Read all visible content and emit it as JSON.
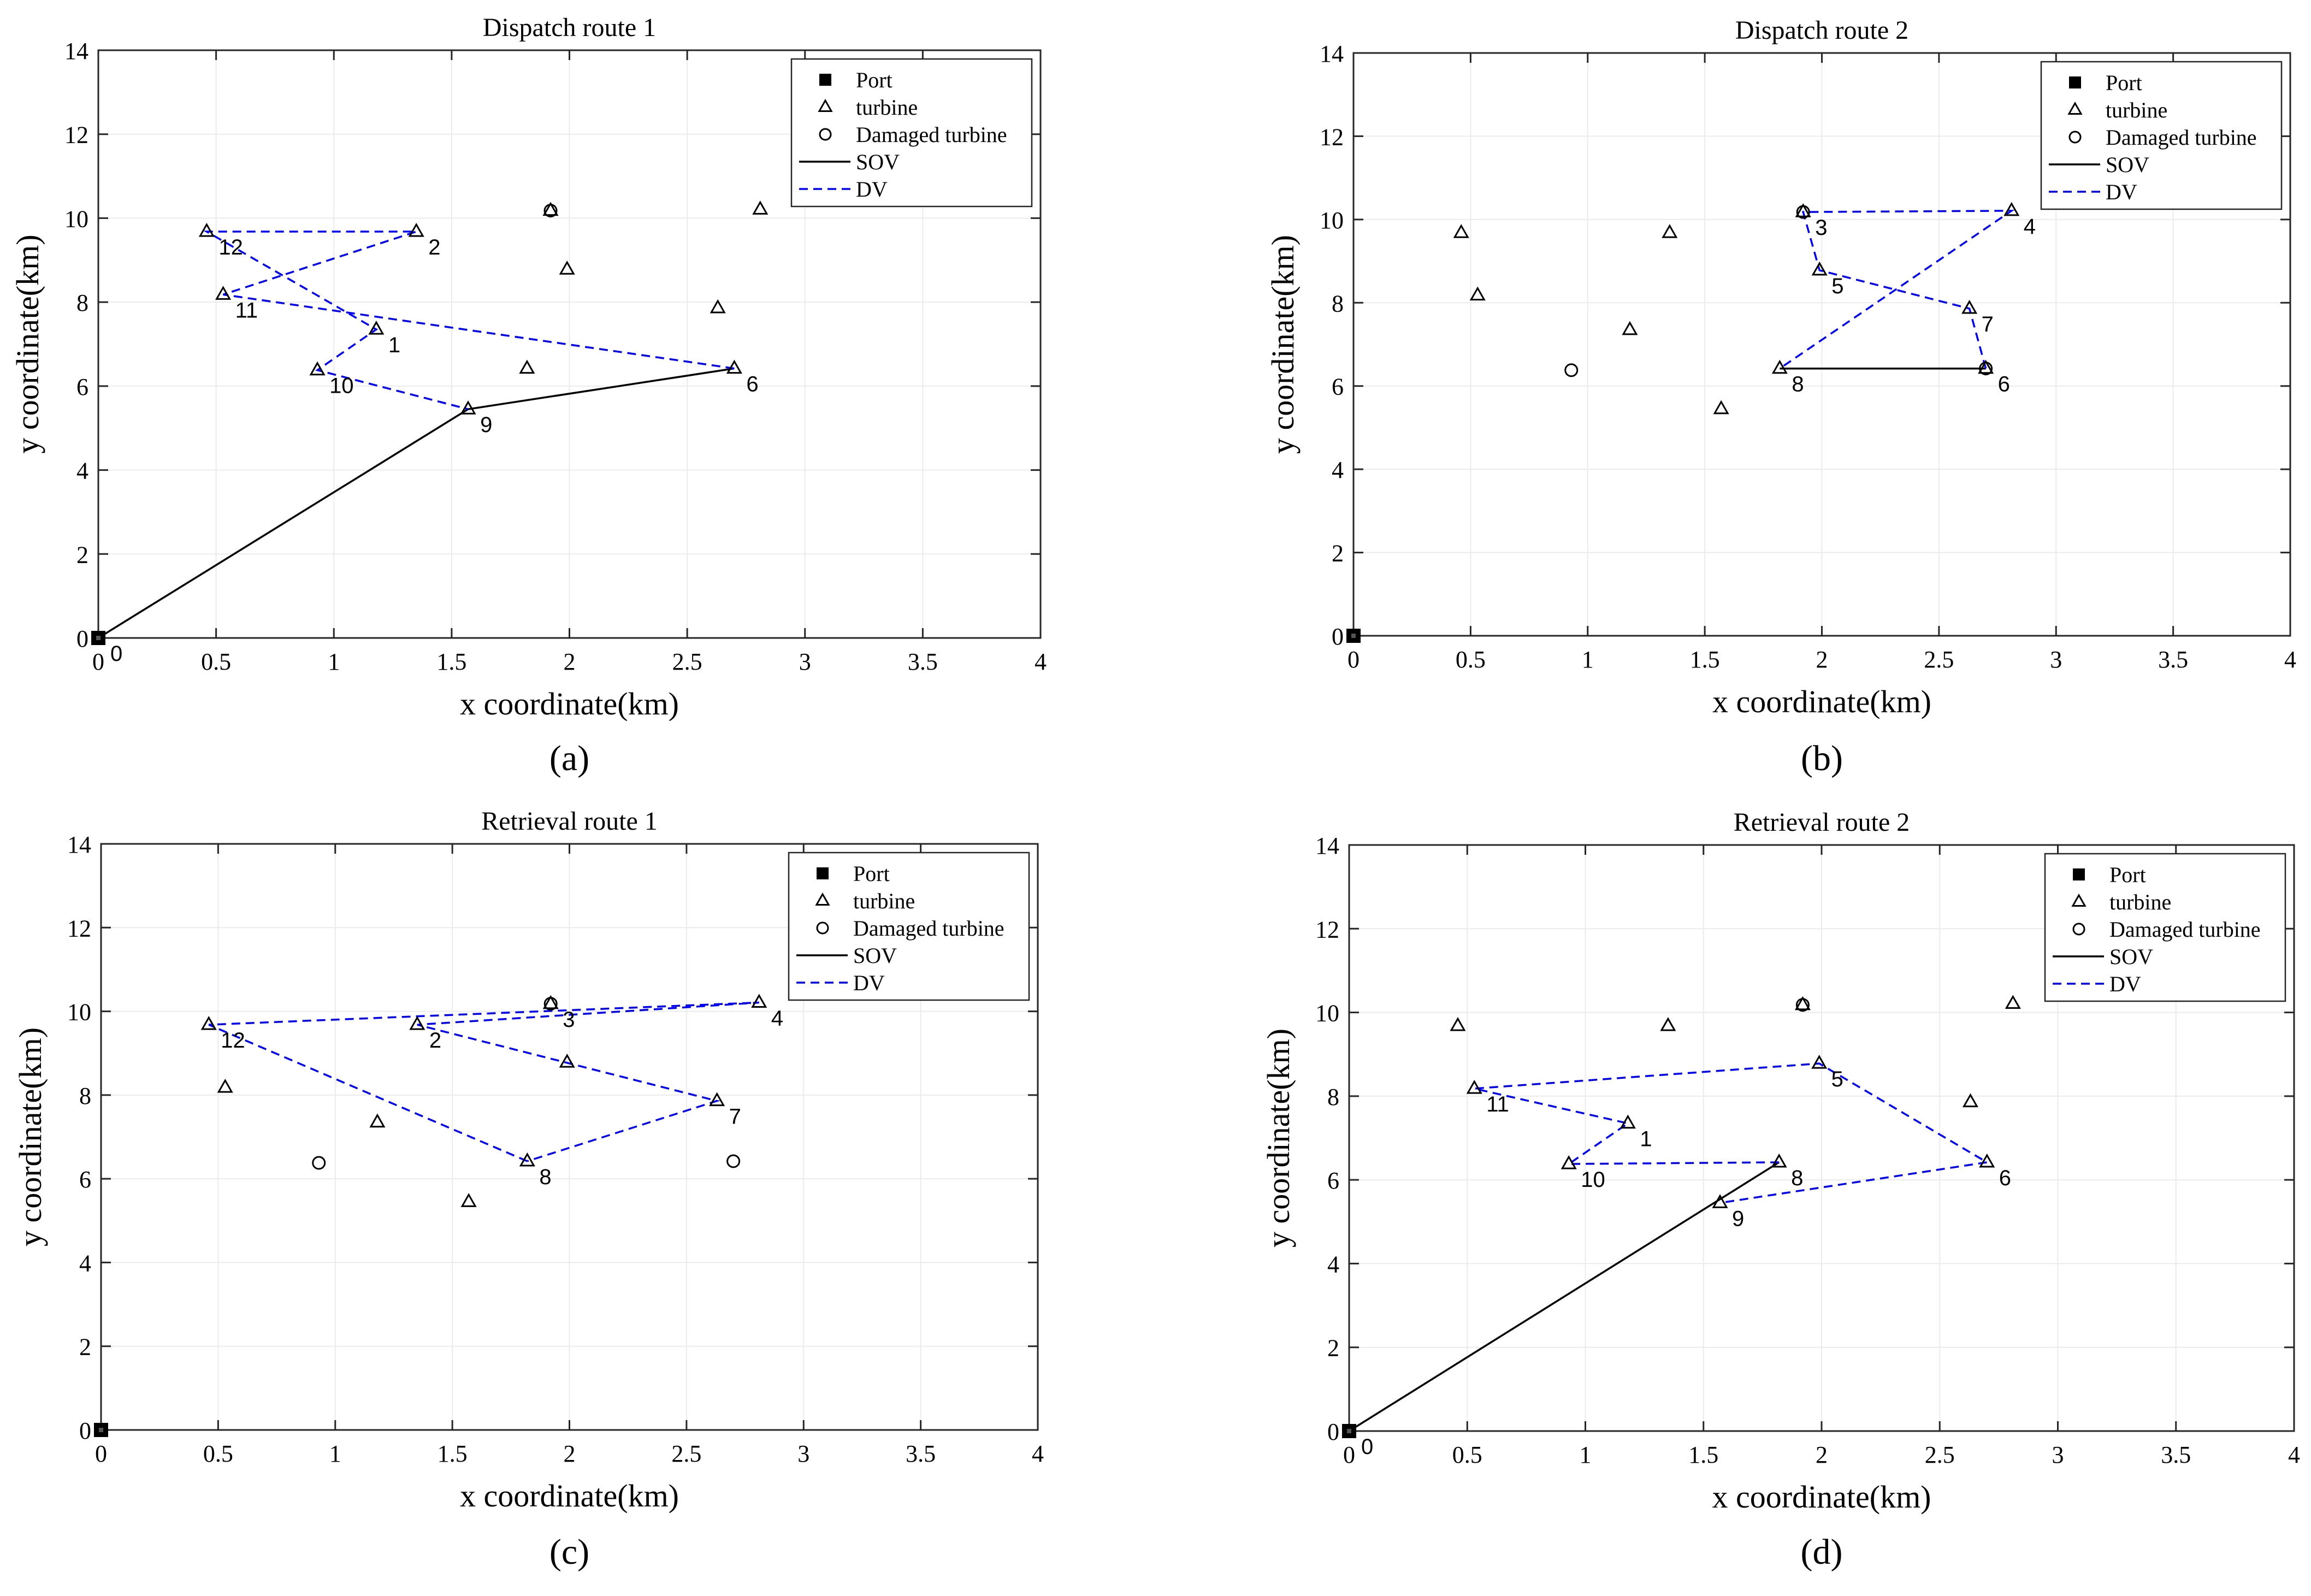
{
  "colors": {
    "sov": "#000000",
    "dv": "#0000ff",
    "grid": "#ebebeb",
    "axis": "#262626",
    "label": "#000000"
  },
  "chart_data": [
    {
      "type": "scatter",
      "caption": "(a)",
      "title": "Dispatch route 1",
      "xlabel": "x coordinate(km)",
      "ylabel": "y coordinate(km)",
      "xlim": [
        0,
        4
      ],
      "ylim": [
        0,
        14
      ],
      "xticks": [
        "0",
        "0.5",
        "1",
        "1.5",
        "2",
        "2.5",
        "3",
        "3.5",
        "4"
      ],
      "yticks": [
        "0",
        "2",
        "4",
        "6",
        "8",
        "10",
        "12",
        "14"
      ],
      "grid": true,
      "legend_position": "top-right",
      "legend": [
        "Port",
        "turbine",
        "Damaged turbine",
        "SOV",
        "DV"
      ],
      "port": [
        0,
        0
      ],
      "turbines": [
        [
          0.46,
          9.68
        ],
        [
          1.35,
          9.68
        ],
        [
          1.92,
          10.18
        ],
        [
          2.81,
          10.21
        ],
        [
          0.53,
          8.18
        ],
        [
          1.99,
          8.78
        ],
        [
          2.63,
          7.86
        ],
        [
          1.18,
          7.35
        ],
        [
          0.93,
          6.38
        ],
        [
          1.82,
          6.42
        ],
        [
          2.7,
          6.42
        ],
        [
          1.57,
          5.45
        ]
      ],
      "damaged": [
        [
          1.92,
          10.18
        ]
      ],
      "sov_path": [
        [
          0,
          0
        ],
        [
          1.57,
          5.45
        ],
        [
          2.7,
          6.42
        ]
      ],
      "dv_path": [
        [
          2.7,
          6.42
        ],
        [
          0.53,
          8.18
        ],
        [
          1.35,
          9.68
        ],
        [
          0.46,
          9.68
        ],
        [
          1.18,
          7.35
        ],
        [
          0.93,
          6.38
        ],
        [
          1.57,
          5.45
        ]
      ],
      "node_labels": [
        {
          "text": "0",
          "x": 0,
          "y": 0
        },
        {
          "text": "12",
          "x": 0.46,
          "y": 9.68
        },
        {
          "text": "2",
          "x": 1.35,
          "y": 9.68
        },
        {
          "text": "11",
          "x": 0.53,
          "y": 8.18
        },
        {
          "text": "1",
          "x": 1.18,
          "y": 7.35
        },
        {
          "text": "10",
          "x": 0.93,
          "y": 6.38
        },
        {
          "text": "9",
          "x": 1.57,
          "y": 5.45
        },
        {
          "text": "6",
          "x": 2.7,
          "y": 6.42
        }
      ]
    },
    {
      "type": "scatter",
      "caption": "(b)",
      "title": "Dispatch route 2",
      "xlabel": "x coordinate(km)",
      "ylabel": "y coordinate(km)",
      "xlim": [
        0,
        4
      ],
      "ylim": [
        0,
        14
      ],
      "xticks": [
        "0",
        "0.5",
        "1",
        "1.5",
        "2",
        "2.5",
        "3",
        "3.5",
        "4"
      ],
      "yticks": [
        "0",
        "2",
        "4",
        "6",
        "8",
        "10",
        "12",
        "14"
      ],
      "grid": true,
      "legend_position": "top-right",
      "legend": [
        "Port",
        "turbine",
        "Damaged turbine",
        "SOV",
        "DV"
      ],
      "port": [
        0,
        0
      ],
      "turbines": [
        [
          0.46,
          9.68
        ],
        [
          1.35,
          9.68
        ],
        [
          1.92,
          10.18
        ],
        [
          2.81,
          10.21
        ],
        [
          0.53,
          8.18
        ],
        [
          1.99,
          8.78
        ],
        [
          2.63,
          7.86
        ],
        [
          1.18,
          7.35
        ],
        [
          1.82,
          6.42
        ],
        [
          2.7,
          6.42
        ],
        [
          1.57,
          5.45
        ]
      ],
      "damaged": [
        [
          0.93,
          6.38
        ],
        [
          1.92,
          10.18
        ],
        [
          2.7,
          6.42
        ]
      ],
      "sov_path": [
        [
          1.82,
          6.42
        ],
        [
          2.7,
          6.42
        ]
      ],
      "dv_path": [
        [
          2.7,
          6.42
        ],
        [
          2.63,
          7.86
        ],
        [
          1.99,
          8.78
        ],
        [
          1.92,
          10.18
        ],
        [
          2.81,
          10.21
        ],
        [
          1.82,
          6.42
        ]
      ],
      "node_labels": [
        {
          "text": "3",
          "x": 1.92,
          "y": 10.18
        },
        {
          "text": "4",
          "x": 2.81,
          "y": 10.21
        },
        {
          "text": "5",
          "x": 1.99,
          "y": 8.78
        },
        {
          "text": "7",
          "x": 2.63,
          "y": 7.86
        },
        {
          "text": "8",
          "x": 1.82,
          "y": 6.42
        },
        {
          "text": "6",
          "x": 2.7,
          "y": 6.42
        }
      ]
    },
    {
      "type": "scatter",
      "caption": "(c)",
      "title": "Retrieval route 1",
      "xlabel": "x coordinate(km)",
      "ylabel": "y coordinate(km)",
      "xlim": [
        0,
        4
      ],
      "ylim": [
        0,
        14
      ],
      "xticks": [
        "0",
        "0.5",
        "1",
        "1.5",
        "2",
        "2.5",
        "3",
        "3.5",
        "4"
      ],
      "yticks": [
        "0",
        "2",
        "4",
        "6",
        "8",
        "10",
        "12",
        "14"
      ],
      "grid": true,
      "legend_position": "top-right",
      "legend": [
        "Port",
        "turbine",
        "Damaged turbine",
        "SOV",
        "DV"
      ],
      "port": [
        0,
        0
      ],
      "turbines": [
        [
          0.46,
          9.68
        ],
        [
          1.35,
          9.68
        ],
        [
          1.92,
          10.18
        ],
        [
          2.81,
          10.21
        ],
        [
          0.53,
          8.18
        ],
        [
          1.99,
          8.78
        ],
        [
          2.63,
          7.86
        ],
        [
          1.18,
          7.35
        ],
        [
          1.82,
          6.42
        ],
        [
          1.57,
          5.45
        ]
      ],
      "damaged": [
        [
          0.93,
          6.38
        ],
        [
          2.7,
          6.42
        ],
        [
          1.92,
          10.18
        ]
      ],
      "sov_path": [],
      "dv_path": [
        [
          1.82,
          6.42
        ],
        [
          0.46,
          9.68
        ],
        [
          2.81,
          10.21
        ],
        [
          1.35,
          9.68
        ],
        [
          2.63,
          7.86
        ],
        [
          1.82,
          6.42
        ]
      ],
      "node_labels": [
        {
          "text": "12",
          "x": 0.46,
          "y": 9.68
        },
        {
          "text": "2",
          "x": 1.35,
          "y": 9.68
        },
        {
          "text": "3",
          "x": 1.92,
          "y": 10.18
        },
        {
          "text": "4",
          "x": 2.81,
          "y": 10.21
        },
        {
          "text": "7",
          "x": 2.63,
          "y": 7.86
        },
        {
          "text": "8",
          "x": 1.82,
          "y": 6.42
        }
      ]
    },
    {
      "type": "scatter",
      "caption": "(d)",
      "title": "Retrieval route 2",
      "xlabel": "x coordinate(km)",
      "ylabel": "y coordinate(km)",
      "xlim": [
        0,
        4
      ],
      "ylim": [
        0,
        14
      ],
      "xticks": [
        "0",
        "0.5",
        "1",
        "1.5",
        "2",
        "2.5",
        "3",
        "3.5",
        "4"
      ],
      "yticks": [
        "0",
        "2",
        "4",
        "6",
        "8",
        "10",
        "12",
        "14"
      ],
      "grid": true,
      "legend_position": "top-right",
      "legend": [
        "Port",
        "turbine",
        "Damaged turbine",
        "SOV",
        "DV"
      ],
      "port": [
        0,
        0
      ],
      "turbines": [
        [
          0.46,
          9.68
        ],
        [
          1.35,
          9.68
        ],
        [
          1.92,
          10.18
        ],
        [
          2.81,
          10.21
        ],
        [
          0.53,
          8.18
        ],
        [
          1.99,
          8.78
        ],
        [
          2.63,
          7.86
        ],
        [
          1.18,
          7.35
        ],
        [
          0.93,
          6.38
        ],
        [
          1.82,
          6.42
        ],
        [
          2.7,
          6.42
        ],
        [
          1.57,
          5.45
        ]
      ],
      "damaged": [
        [
          1.92,
          10.18
        ]
      ],
      "sov_path": [
        [
          0,
          0
        ],
        [
          1.82,
          6.42
        ]
      ],
      "dv_path": [
        [
          1.82,
          6.42
        ],
        [
          0.93,
          6.38
        ],
        [
          1.18,
          7.35
        ],
        [
          0.53,
          8.18
        ],
        [
          1.99,
          8.78
        ],
        [
          2.7,
          6.42
        ],
        [
          1.57,
          5.45
        ]
      ],
      "node_labels": [
        {
          "text": "0",
          "x": 0,
          "y": 0
        },
        {
          "text": "11",
          "x": 0.53,
          "y": 8.18
        },
        {
          "text": "1",
          "x": 1.18,
          "y": 7.35
        },
        {
          "text": "10",
          "x": 0.93,
          "y": 6.38
        },
        {
          "text": "5",
          "x": 1.99,
          "y": 8.78
        },
        {
          "text": "8",
          "x": 1.82,
          "y": 6.42
        },
        {
          "text": "6",
          "x": 2.7,
          "y": 6.42
        },
        {
          "text": "9",
          "x": 1.57,
          "y": 5.45
        }
      ]
    }
  ]
}
